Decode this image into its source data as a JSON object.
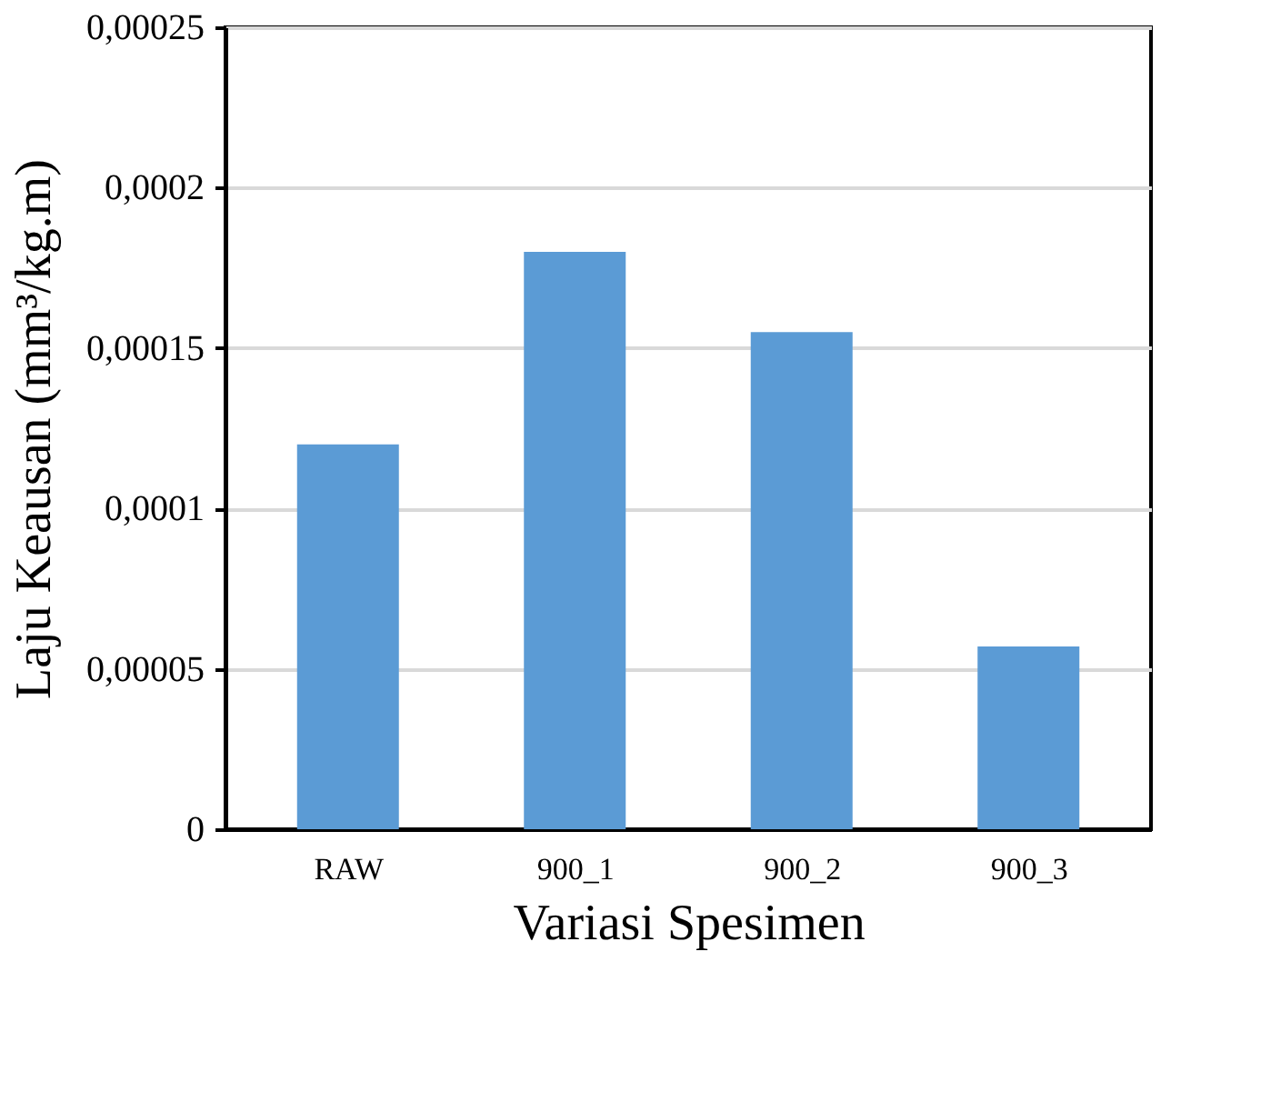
{
  "chart_data": {
    "type": "bar",
    "categories": [
      "RAW",
      "900_1",
      "900_2",
      "900_3"
    ],
    "values": [
      0.00012,
      0.00018,
      0.000155,
      5.7e-05
    ],
    "color": "#5b9bd5",
    "xlabel": "Variasi Spesimen",
    "ylabel": "Laju Keausan (mm³/kg.m)",
    "ylim": [
      0,
      0.00025
    ],
    "yticks": [
      0,
      {
        "value": 5e-05,
        "label": "0,00005"
      },
      {
        "value": 0.0001,
        "label": "0,0001"
      },
      {
        "value": 0.00015,
        "label": "0,00015"
      },
      {
        "value": 0.0002,
        "label": "0,0002"
      },
      {
        "value": 0.00025,
        "label": "0,00025"
      }
    ],
    "grid": "y"
  }
}
